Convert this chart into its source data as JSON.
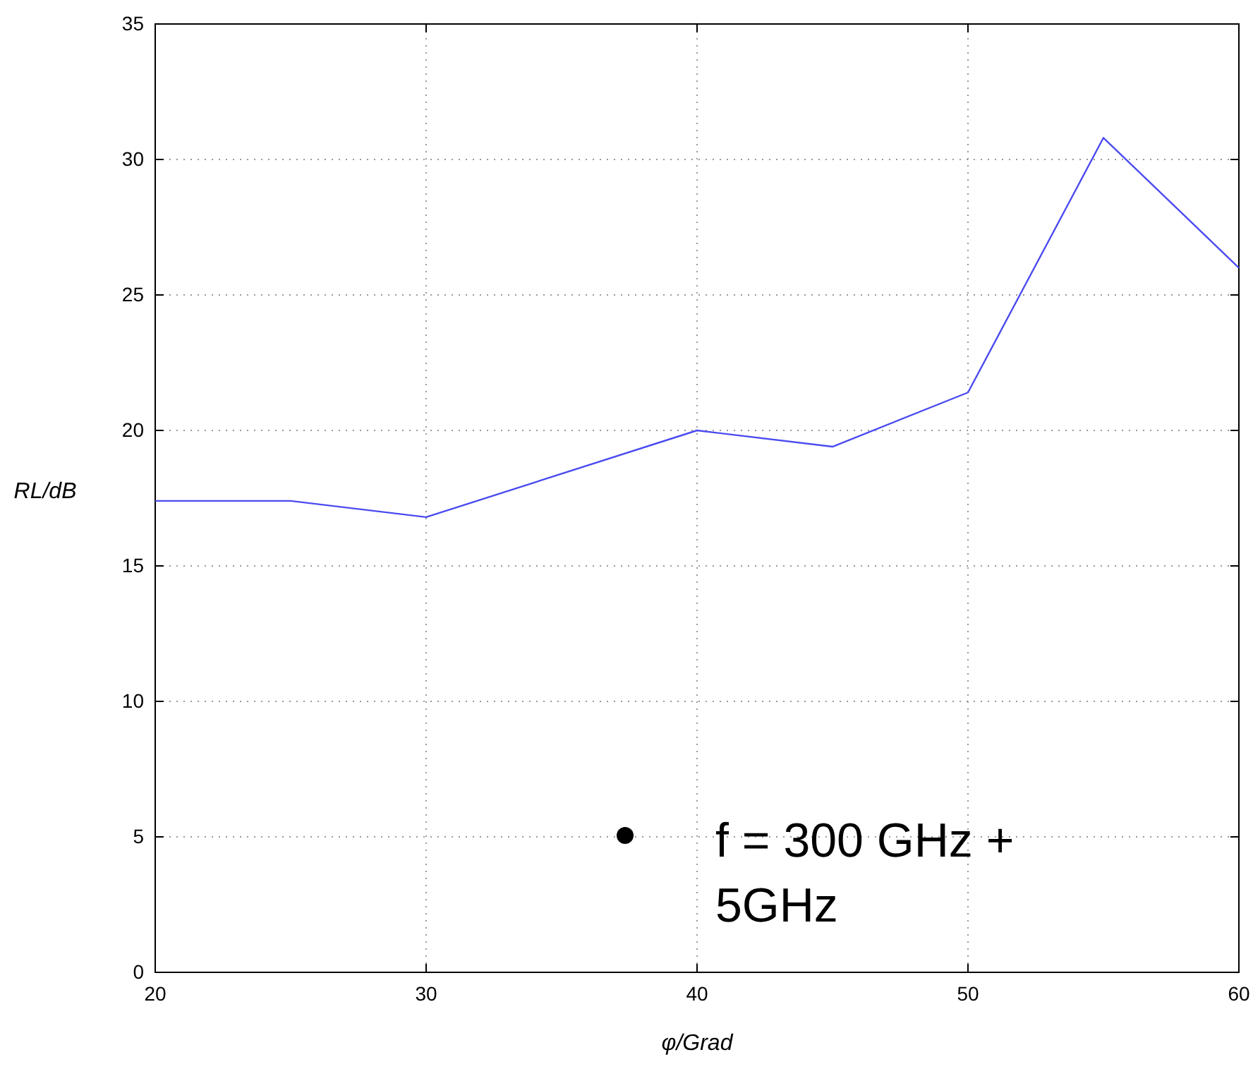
{
  "chart_data": {
    "type": "line",
    "xlabel": "φ/Grad",
    "ylabel": "RL/dB",
    "x": [
      20,
      25,
      30,
      40,
      45,
      50,
      55,
      60
    ],
    "series": [
      {
        "color": "#4b4bf0",
        "values": [
          17.4,
          17.4,
          16.8,
          20.0,
          19.4,
          21.4,
          30.8,
          26.0
        ]
      }
    ],
    "xlim": [
      20,
      60
    ],
    "xticks": [
      20,
      30,
      40,
      50,
      60
    ],
    "ylim": [
      0,
      35
    ],
    "yticks": [
      0,
      5,
      10,
      15,
      20,
      25,
      30,
      35
    ],
    "grid": true,
    "marker": "none",
    "line_style": "solid",
    "annotations": [
      "f  = 300 GHz + 5GHz"
    ]
  }
}
